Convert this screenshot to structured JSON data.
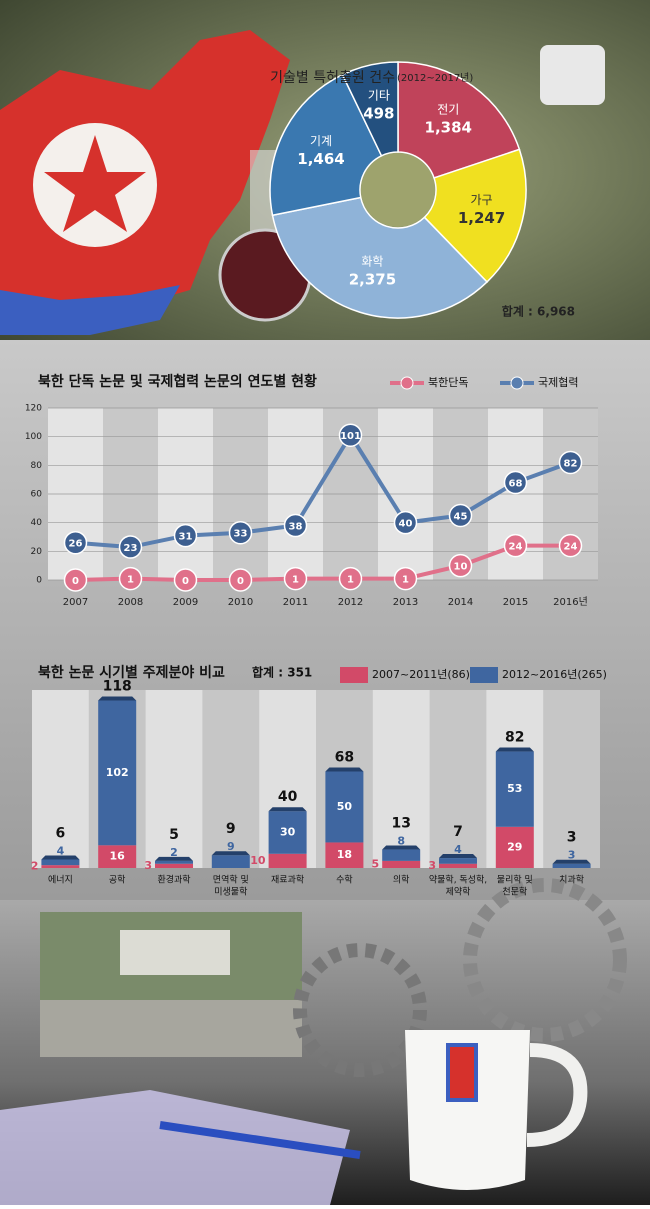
{
  "chart_data": [
    {
      "type": "pie",
      "title": "기술별 특허출원 건수",
      "subtitle": "(2012~2017년)",
      "categories": [
        "전기",
        "가구",
        "화학",
        "기계",
        "기타"
      ],
      "values": [
        1384,
        1247,
        2375,
        1464,
        498
      ],
      "value_labels": [
        "1,384",
        "1,247",
        "2,375",
        "1,464",
        "498"
      ],
      "colors": [
        "#c0435a",
        "#f0e020",
        "#8fb3d8",
        "#3a78b0",
        "#23507f"
      ],
      "annotation": "합계 : 6,968"
    },
    {
      "type": "line",
      "title": "북한 단독 논문 및 국제협력 논문의 연도별 현황",
      "categories": [
        "2007",
        "2008",
        "2009",
        "2010",
        "2011",
        "2012",
        "2013",
        "2014",
        "2015",
        "2016년"
      ],
      "series": [
        {
          "name": "북한단독",
          "color": "#e0708a",
          "values": [
            0,
            1,
            0,
            0,
            1,
            1,
            1,
            10,
            24,
            24
          ]
        },
        {
          "name": "국제협력",
          "color": "#5a7fb0",
          "values": [
            26,
            23,
            31,
            33,
            38,
            101,
            40,
            45,
            68,
            82
          ]
        }
      ],
      "ylim": [
        0,
        120
      ],
      "yticks": [
        0,
        20,
        40,
        60,
        80,
        100,
        120
      ],
      "grid": true,
      "legend": "top-right"
    },
    {
      "type": "bar",
      "stacked": true,
      "title": "북한 논문 시기별 주제분야 비교",
      "annotation": "합계 : 351",
      "categories": [
        [
          "에너지"
        ],
        [
          "공학"
        ],
        [
          "환경과학"
        ],
        [
          "면역학 및",
          "미생물학"
        ],
        [
          "재료과학"
        ],
        [
          "수학"
        ],
        [
          "의학"
        ],
        [
          "약물학, 독성학,",
          "제약학"
        ],
        [
          "물리학 및",
          "천문학"
        ],
        [
          "치과학"
        ]
      ],
      "series": [
        {
          "name": "2007~2011년(86)",
          "color": "#d24a68",
          "values": [
            2,
            16,
            3,
            0,
            10,
            18,
            5,
            3,
            29,
            0
          ]
        },
        {
          "name": "2012~2016년(265)",
          "color": "#3f66a0",
          "values": [
            4,
            102,
            2,
            9,
            30,
            50,
            8,
            4,
            53,
            3
          ]
        }
      ],
      "totals": [
        6,
        118,
        5,
        9,
        40,
        68,
        13,
        7,
        82,
        3
      ]
    }
  ]
}
